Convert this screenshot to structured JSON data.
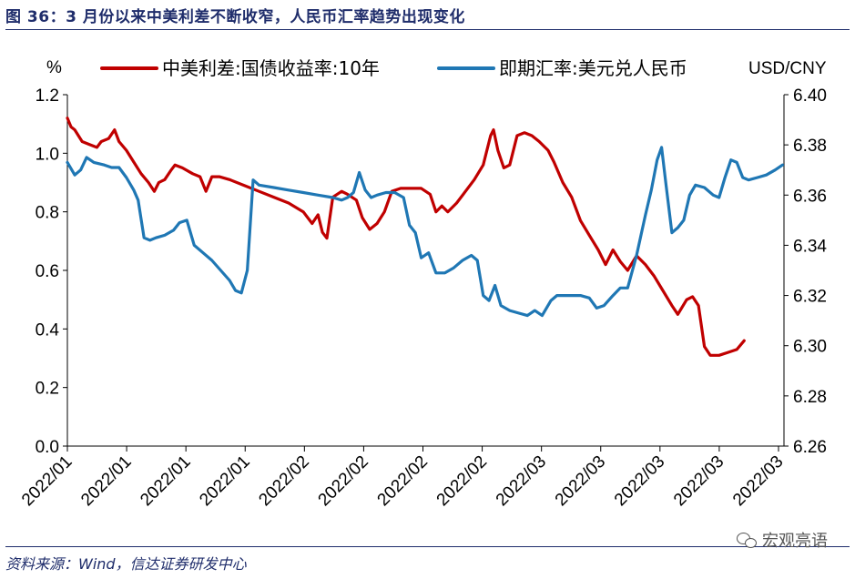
{
  "title": "图 36：3 月份以来中美利差不断收窄，人民币汇率趋势出现变化",
  "source": "资料来源：Wind，信达证券研发中心",
  "watermark": "宏观亮语",
  "chart_data": {
    "type": "line",
    "left_unit": "%",
    "right_unit": "USD/CNY",
    "left_axis": {
      "min": 0.0,
      "max": 1.2,
      "ticks": [
        "0.0",
        "0.2",
        "0.4",
        "0.6",
        "0.8",
        "1.0",
        "1.2"
      ]
    },
    "right_axis": {
      "min": 6.26,
      "max": 6.4,
      "ticks": [
        "6.26",
        "6.28",
        "6.30",
        "6.32",
        "6.34",
        "6.36",
        "6.38",
        "6.40"
      ]
    },
    "x_labels": [
      "2022/01",
      "2022/01",
      "2022/01",
      "2022/01",
      "2022/02",
      "2022/02",
      "2022/02",
      "2022/02",
      "2022/03",
      "2022/03",
      "2022/03",
      "2022/03",
      "2022/03"
    ],
    "legend_position": "top",
    "grid": false,
    "series": [
      {
        "name": "中美利差:国债收益率:10年",
        "axis": "left",
        "color": "#c00000",
        "points": [
          [
            0.0,
            1.12
          ],
          [
            0.25,
            1.09
          ],
          [
            0.5,
            1.08
          ],
          [
            1.0,
            1.04
          ],
          [
            1.5,
            1.03
          ],
          [
            2.0,
            1.02
          ],
          [
            2.3,
            1.04
          ],
          [
            2.8,
            1.05
          ],
          [
            3.2,
            1.08
          ],
          [
            3.5,
            1.04
          ],
          [
            4.0,
            1.01
          ],
          [
            4.5,
            0.97
          ],
          [
            5.0,
            0.93
          ],
          [
            5.5,
            0.9
          ],
          [
            5.9,
            0.87
          ],
          [
            6.2,
            0.9
          ],
          [
            6.6,
            0.91
          ],
          [
            7.0,
            0.94
          ],
          [
            7.3,
            0.96
          ],
          [
            7.8,
            0.95
          ],
          [
            8.5,
            0.93
          ],
          [
            9.0,
            0.92
          ],
          [
            9.4,
            0.87
          ],
          [
            9.8,
            0.92
          ],
          [
            10.3,
            0.92
          ],
          [
            11.0,
            0.91
          ],
          [
            12.0,
            0.89
          ],
          [
            13.0,
            0.87
          ],
          [
            14.0,
            0.85
          ],
          [
            15.0,
            0.83
          ],
          [
            16.0,
            0.8
          ],
          [
            16.6,
            0.76
          ],
          [
            17.0,
            0.79
          ],
          [
            17.3,
            0.73
          ],
          [
            17.6,
            0.71
          ],
          [
            18.0,
            0.85
          ],
          [
            18.6,
            0.87
          ],
          [
            19.0,
            0.86
          ],
          [
            19.6,
            0.84
          ],
          [
            20.0,
            0.78
          ],
          [
            20.5,
            0.74
          ],
          [
            21.0,
            0.76
          ],
          [
            21.5,
            0.8
          ],
          [
            22.0,
            0.87
          ],
          [
            22.6,
            0.88
          ],
          [
            23.2,
            0.88
          ],
          [
            24.0,
            0.88
          ],
          [
            24.6,
            0.86
          ],
          [
            25.0,
            0.8
          ],
          [
            25.4,
            0.82
          ],
          [
            25.8,
            0.8
          ],
          [
            26.4,
            0.83
          ],
          [
            27.0,
            0.87
          ],
          [
            27.6,
            0.91
          ],
          [
            28.2,
            0.96
          ],
          [
            28.7,
            1.06
          ],
          [
            28.9,
            1.08
          ],
          [
            29.2,
            1.01
          ],
          [
            29.6,
            0.95
          ],
          [
            30.0,
            0.96
          ],
          [
            30.5,
            1.06
          ],
          [
            31.0,
            1.07
          ],
          [
            31.5,
            1.06
          ],
          [
            32.0,
            1.04
          ],
          [
            32.6,
            1.01
          ],
          [
            33.0,
            0.97
          ],
          [
            33.6,
            0.9
          ],
          [
            34.2,
            0.85
          ],
          [
            34.8,
            0.77
          ],
          [
            35.4,
            0.72
          ],
          [
            36.0,
            0.67
          ],
          [
            36.5,
            0.62
          ],
          [
            37.0,
            0.67
          ],
          [
            37.5,
            0.63
          ],
          [
            38.0,
            0.6
          ],
          [
            38.6,
            0.65
          ],
          [
            39.2,
            0.62
          ],
          [
            39.8,
            0.58
          ],
          [
            40.4,
            0.53
          ],
          [
            41.0,
            0.48
          ],
          [
            41.4,
            0.45
          ],
          [
            42.0,
            0.5
          ],
          [
            42.4,
            0.51
          ],
          [
            42.8,
            0.48
          ],
          [
            43.2,
            0.34
          ],
          [
            43.6,
            0.31
          ],
          [
            44.2,
            0.31
          ],
          [
            44.8,
            0.32
          ],
          [
            45.4,
            0.33
          ],
          [
            45.9,
            0.36
          ]
        ]
      },
      {
        "name": "即期汇率:美元兑人民币",
        "axis": "right",
        "color": "#1f77b4",
        "points": [
          [
            0.0,
            6.373
          ],
          [
            0.5,
            6.368
          ],
          [
            0.9,
            6.37
          ],
          [
            1.3,
            6.375
          ],
          [
            1.8,
            6.373
          ],
          [
            2.5,
            6.372
          ],
          [
            3.0,
            6.371
          ],
          [
            3.5,
            6.371
          ],
          [
            4.0,
            6.367
          ],
          [
            4.5,
            6.362
          ],
          [
            4.8,
            6.358
          ],
          [
            5.2,
            6.343
          ],
          [
            5.6,
            6.342
          ],
          [
            6.0,
            6.343
          ],
          [
            6.6,
            6.344
          ],
          [
            7.2,
            6.346
          ],
          [
            7.6,
            6.349
          ],
          [
            8.1,
            6.35
          ],
          [
            8.6,
            6.34
          ],
          [
            9.2,
            6.337
          ],
          [
            9.8,
            6.334
          ],
          [
            10.4,
            6.33
          ],
          [
            11.0,
            6.326
          ],
          [
            11.4,
            6.322
          ],
          [
            11.8,
            6.321
          ],
          [
            12.2,
            6.33
          ],
          [
            12.6,
            6.366
          ],
          [
            13.0,
            6.364
          ],
          [
            14.0,
            6.363
          ],
          [
            15.0,
            6.362
          ],
          [
            16.0,
            6.361
          ],
          [
            17.0,
            6.36
          ],
          [
            18.0,
            6.359
          ],
          [
            18.6,
            6.358
          ],
          [
            19.0,
            6.359
          ],
          [
            19.4,
            6.361
          ],
          [
            19.8,
            6.369
          ],
          [
            20.2,
            6.362
          ],
          [
            20.6,
            6.359
          ],
          [
            21.0,
            6.36
          ],
          [
            21.6,
            6.361
          ],
          [
            22.2,
            6.361
          ],
          [
            22.8,
            6.359
          ],
          [
            23.2,
            6.348
          ],
          [
            23.6,
            6.345
          ],
          [
            24.0,
            6.335
          ],
          [
            24.5,
            6.337
          ],
          [
            25.0,
            6.329
          ],
          [
            25.6,
            6.329
          ],
          [
            26.2,
            6.331
          ],
          [
            26.8,
            6.334
          ],
          [
            27.4,
            6.336
          ],
          [
            27.8,
            6.334
          ],
          [
            28.2,
            6.32
          ],
          [
            28.6,
            6.318
          ],
          [
            29.0,
            6.324
          ],
          [
            29.4,
            6.316
          ],
          [
            30.0,
            6.314
          ],
          [
            30.6,
            6.313
          ],
          [
            31.2,
            6.312
          ],
          [
            31.7,
            6.314
          ],
          [
            32.2,
            6.312
          ],
          [
            32.8,
            6.318
          ],
          [
            33.2,
            6.32
          ],
          [
            34.0,
            6.32
          ],
          [
            34.8,
            6.32
          ],
          [
            35.4,
            6.319
          ],
          [
            35.9,
            6.315
          ],
          [
            36.4,
            6.316
          ],
          [
            37.0,
            6.32
          ],
          [
            37.5,
            6.323
          ],
          [
            38.0,
            6.323
          ],
          [
            38.6,
            6.336
          ],
          [
            39.2,
            6.352
          ],
          [
            39.6,
            6.362
          ],
          [
            40.0,
            6.374
          ],
          [
            40.3,
            6.379
          ],
          [
            40.6,
            6.364
          ],
          [
            41.0,
            6.345
          ],
          [
            41.4,
            6.347
          ],
          [
            41.8,
            6.35
          ],
          [
            42.2,
            6.36
          ],
          [
            42.6,
            6.364
          ],
          [
            43.2,
            6.363
          ],
          [
            43.8,
            6.36
          ],
          [
            44.2,
            6.359
          ],
          [
            44.6,
            6.367
          ],
          [
            45.0,
            6.374
          ],
          [
            45.4,
            6.373
          ],
          [
            45.8,
            6.367
          ],
          [
            46.2,
            6.366
          ],
          [
            46.8,
            6.367
          ],
          [
            47.4,
            6.368
          ],
          [
            48.0,
            6.37
          ],
          [
            48.5,
            6.372
          ]
        ]
      }
    ]
  }
}
